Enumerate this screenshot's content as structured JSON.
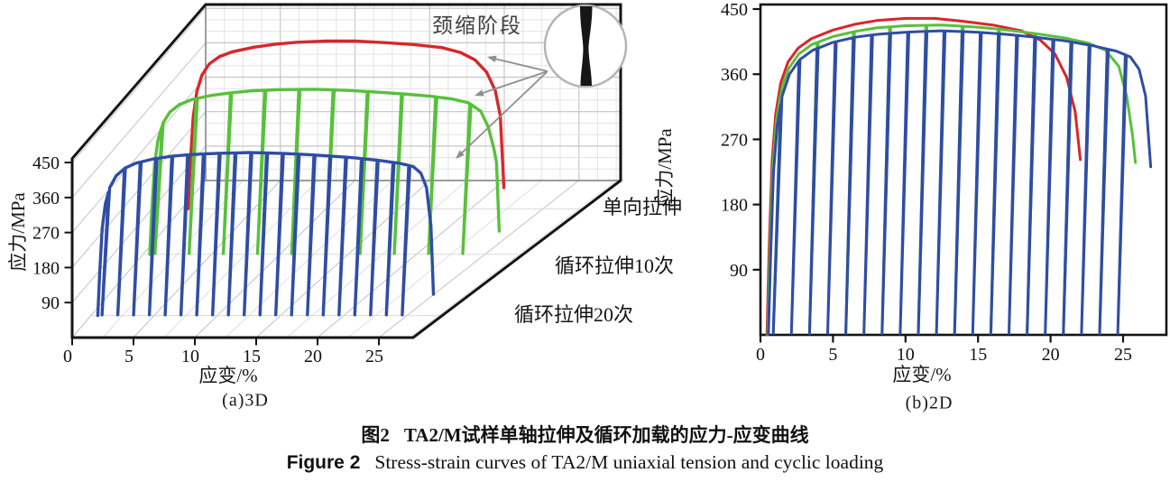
{
  "colors": {
    "uniaxial_red": "#d8272b",
    "cyclic10_green": "#57c13a",
    "cyclic20_blue": "#2f4da5",
    "frame_black": "#141414",
    "grid_major": "#c6c6c6",
    "grid_minor": "#e3e3e3",
    "arrow_gray": "#8f8f8f",
    "inset_ring": "#b5b5b5",
    "specimen_black": "#161616"
  },
  "panel_a": {
    "caption": "(a)3D",
    "xlabel": "应变/%",
    "ylabel": "应力/MPa",
    "x_ticks": [
      0,
      5,
      10,
      15,
      20,
      25
    ],
    "y_ticks": [
      90,
      180,
      270,
      360,
      450
    ],
    "annotation": "颈缩阶段",
    "series_labels": {
      "uniaxial": "单向拉伸",
      "cyclic10": "循环拉伸10次",
      "cyclic20": "循环拉伸20次"
    }
  },
  "panel_b": {
    "caption": "(b)2D",
    "xlabel": "应变/%",
    "ylabel": "应力/MPa",
    "x_ticks": [
      0,
      5,
      10,
      15,
      20,
      25
    ],
    "y_ticks": [
      90,
      180,
      270,
      360,
      450
    ]
  },
  "figure_caption": {
    "zh_label": "图2",
    "zh_text": "TA2/M试样单轴拉伸及循环加载的应力-应变曲线",
    "en_label": "Figure 2",
    "en_text": "Stress-strain curves of TA2/M uniaxial tension and cyclic loading"
  },
  "chart_data": [
    {
      "type": "line",
      "projection": "3d",
      "title": "(a)3D",
      "xlabel": "应变/%",
      "ylabel": "应力/MPa",
      "xlim": [
        0,
        27.8
      ],
      "ylim": [
        0,
        460
      ],
      "grid": true,
      "legend_position": "right-diagonal",
      "series": [
        {
          "name": "单向拉伸",
          "color": "#d8272b",
          "depth": 0.82,
          "cycles": [],
          "fracture_tail": [
            22.3,
            55
          ],
          "envelope": [
            [
              0.45,
              0
            ],
            [
              0.6,
              120
            ],
            [
              0.8,
              240
            ],
            [
              1.05,
              305
            ],
            [
              1.4,
              348
            ],
            [
              1.9,
              377
            ],
            [
              2.6,
              396
            ],
            [
              3.5,
              409
            ],
            [
              5,
              421
            ],
            [
              6.5,
              429
            ],
            [
              8,
              434
            ],
            [
              10,
              437
            ],
            [
              12,
              437
            ],
            [
              14,
              433
            ],
            [
              16,
              428
            ],
            [
              18,
              420
            ],
            [
              19.3,
              407
            ],
            [
              20.3,
              388
            ],
            [
              21.1,
              356
            ],
            [
              21.7,
              308
            ],
            [
              22.05,
              242
            ]
          ]
        },
        {
          "name": "循环拉伸10次",
          "color": "#57c13a",
          "depth": 0.53,
          "cycles": [
            1.4,
            3.9,
            6.4,
            8.9,
            11.4,
            13.9,
            16.4,
            18.9,
            21.4,
            23.9
          ],
          "fracture_tail": [
            26.05,
            60
          ],
          "envelope": [
            [
              0.5,
              0
            ],
            [
              0.65,
              115
            ],
            [
              0.85,
              232
            ],
            [
              1.1,
              296
            ],
            [
              1.45,
              339
            ],
            [
              1.95,
              368
            ],
            [
              2.65,
              388
            ],
            [
              3.55,
              401
            ],
            [
              5,
              412
            ],
            [
              6.5,
              419
            ],
            [
              8,
              424
            ],
            [
              10,
              427
            ],
            [
              12.5,
              428
            ],
            [
              15,
              425
            ],
            [
              17,
              421
            ],
            [
              19,
              416
            ],
            [
              21,
              410
            ],
            [
              22.6,
              403
            ],
            [
              23.8,
              393
            ],
            [
              24.7,
              371
            ],
            [
              25.25,
              330
            ],
            [
              25.65,
              275
            ],
            [
              25.85,
              238
            ]
          ]
        },
        {
          "name": "循环拉伸20次",
          "color": "#2f4da5",
          "depth": 0.14,
          "cycles": [
            1.4,
            2.65,
            3.9,
            5.15,
            6.4,
            7.65,
            8.9,
            10.15,
            11.4,
            12.65,
            13.9,
            15.15,
            16.4,
            17.65,
            18.9,
            20.15,
            21.4,
            22.65,
            23.9,
            25.15
          ],
          "fracture_tail": [
            27.1,
            55
          ],
          "envelope": [
            [
              0.55,
              0
            ],
            [
              0.7,
              110
            ],
            [
              0.9,
              225
            ],
            [
              1.15,
              288
            ],
            [
              1.5,
              330
            ],
            [
              2,
              360
            ],
            [
              2.7,
              380
            ],
            [
              3.6,
              393
            ],
            [
              5,
              404
            ],
            [
              6.5,
              411
            ],
            [
              8,
              415
            ],
            [
              10,
              418
            ],
            [
              12.5,
              420
            ],
            [
              15,
              418
            ],
            [
              17,
              415
            ],
            [
              19,
              411
            ],
            [
              21,
              406
            ],
            [
              23,
              399
            ],
            [
              24.5,
              392
            ],
            [
              25.5,
              384
            ],
            [
              26.1,
              367
            ],
            [
              26.55,
              330
            ],
            [
              26.9,
              232
            ]
          ]
        }
      ]
    },
    {
      "type": "line",
      "projection": "2d",
      "title": "(b)2D",
      "xlabel": "应变/%",
      "ylabel": "应力/MPa",
      "xlim": [
        0,
        28
      ],
      "ylim": [
        0,
        456
      ],
      "grid": false,
      "series": [
        {
          "name": "单向拉伸",
          "color": "#d8272b",
          "cycles": [],
          "envelope": [
            [
              0.45,
              0
            ],
            [
              0.6,
              120
            ],
            [
              0.8,
              240
            ],
            [
              1.05,
              305
            ],
            [
              1.4,
              348
            ],
            [
              1.9,
              377
            ],
            [
              2.6,
              396
            ],
            [
              3.5,
              409
            ],
            [
              5,
              421
            ],
            [
              6.5,
              429
            ],
            [
              8,
              434
            ],
            [
              10,
              437
            ],
            [
              12,
              437
            ],
            [
              14,
              433
            ],
            [
              16,
              428
            ],
            [
              18,
              420
            ],
            [
              19.3,
              407
            ],
            [
              20.3,
              388
            ],
            [
              21.1,
              356
            ],
            [
              21.7,
              308
            ],
            [
              22.05,
              242
            ]
          ]
        },
        {
          "name": "循环拉伸10次",
          "color": "#57c13a",
          "cycles": [
            1.4,
            3.9,
            6.4,
            8.9,
            11.4,
            13.9,
            16.4,
            18.9,
            21.4,
            23.9
          ],
          "envelope": [
            [
              0.5,
              0
            ],
            [
              0.65,
              115
            ],
            [
              0.85,
              232
            ],
            [
              1.1,
              296
            ],
            [
              1.45,
              339
            ],
            [
              1.95,
              368
            ],
            [
              2.65,
              388
            ],
            [
              3.55,
              401
            ],
            [
              5,
              412
            ],
            [
              6.5,
              419
            ],
            [
              8,
              424
            ],
            [
              10,
              427
            ],
            [
              12.5,
              428
            ],
            [
              15,
              425
            ],
            [
              17,
              421
            ],
            [
              19,
              416
            ],
            [
              21,
              410
            ],
            [
              22.6,
              403
            ],
            [
              23.8,
              393
            ],
            [
              24.7,
              371
            ],
            [
              25.25,
              330
            ],
            [
              25.65,
              275
            ],
            [
              25.85,
              238
            ]
          ]
        },
        {
          "name": "循环拉伸20次",
          "color": "#2f4da5",
          "cycles": [
            1.4,
            2.65,
            3.9,
            5.15,
            6.4,
            7.65,
            8.9,
            10.15,
            11.4,
            12.65,
            13.9,
            15.15,
            16.4,
            17.65,
            18.9,
            20.15,
            21.4,
            22.65,
            23.9,
            25.15
          ],
          "envelope": [
            [
              0.55,
              0
            ],
            [
              0.7,
              110
            ],
            [
              0.9,
              225
            ],
            [
              1.15,
              288
            ],
            [
              1.5,
              330
            ],
            [
              2,
              360
            ],
            [
              2.7,
              380
            ],
            [
              3.6,
              393
            ],
            [
              5,
              404
            ],
            [
              6.5,
              411
            ],
            [
              8,
              415
            ],
            [
              10,
              418
            ],
            [
              12.5,
              420
            ],
            [
              15,
              418
            ],
            [
              17,
              415
            ],
            [
              19,
              411
            ],
            [
              21,
              406
            ],
            [
              23,
              399
            ],
            [
              24.5,
              392
            ],
            [
              25.5,
              384
            ],
            [
              26.1,
              367
            ],
            [
              26.55,
              330
            ],
            [
              26.9,
              232
            ]
          ]
        }
      ]
    }
  ]
}
